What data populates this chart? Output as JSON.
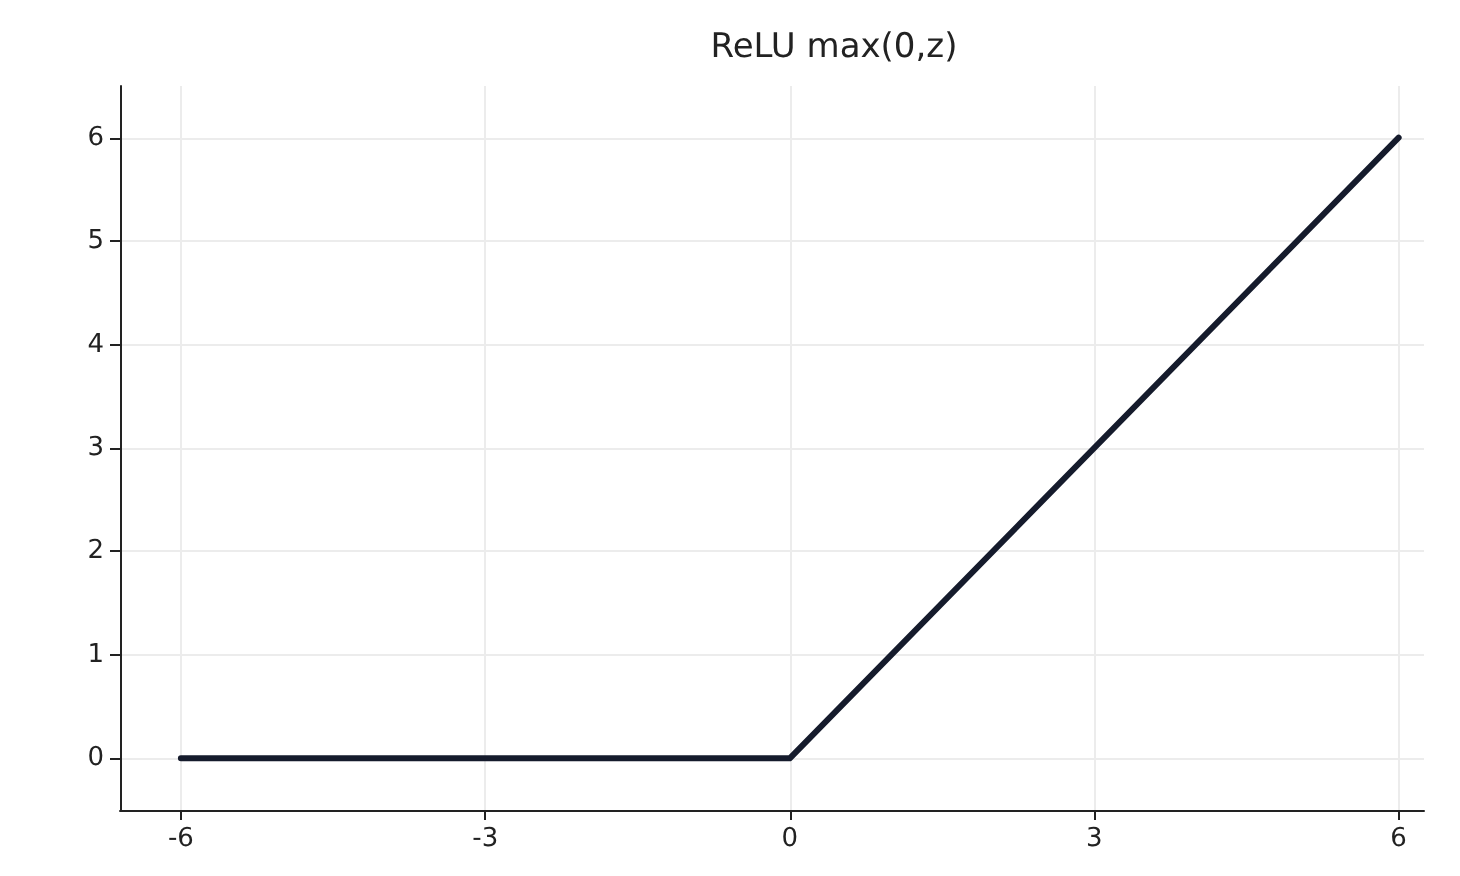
{
  "chart_data": {
    "type": "line",
    "title": "ReLU max(0,z)",
    "x": [
      -6,
      0,
      6
    ],
    "series": [
      {
        "color": "#151b2c",
        "values": [
          0,
          0,
          6
        ]
      }
    ],
    "xlim": [
      -6.6,
      6.25
    ],
    "ylim": [
      -0.5,
      6.5
    ],
    "xticks": [
      -6,
      -3,
      0,
      3,
      6
    ],
    "yticks": [
      0,
      1,
      2,
      3,
      4,
      5,
      6
    ],
    "grid": true,
    "marker": "none",
    "line_style": "solid"
  }
}
